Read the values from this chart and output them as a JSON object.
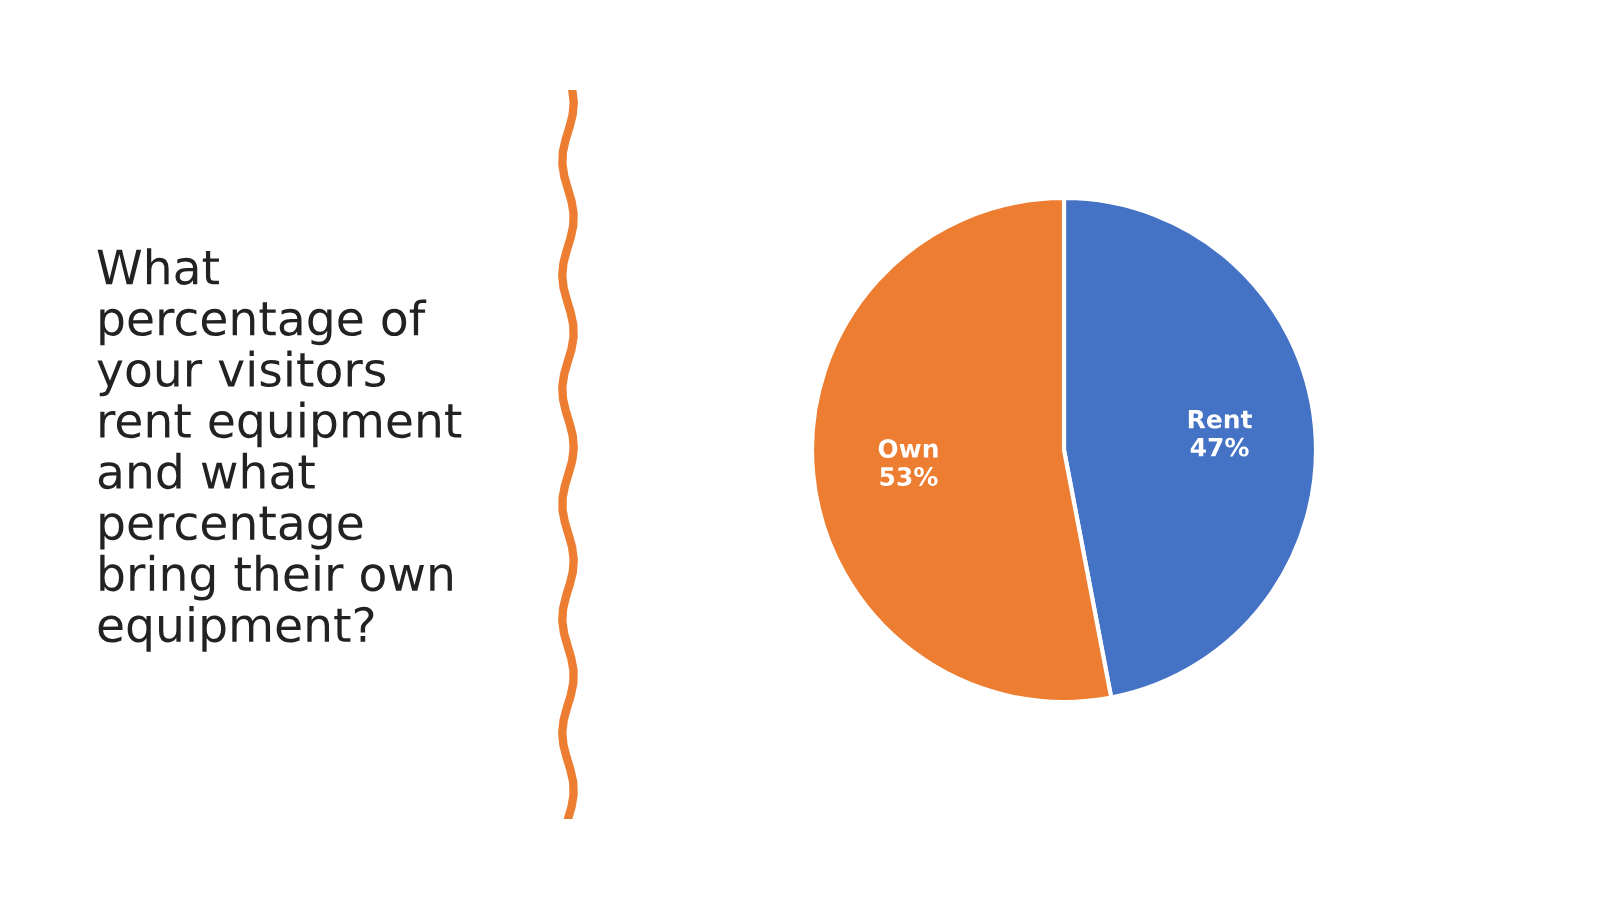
{
  "chart_data": {
    "type": "pie",
    "title": "What\npercentage of\nyour visitors\nrent equipment\nand what\npercentage\nbring their own\nequipment?",
    "categories": [
      "Rent",
      "Own"
    ],
    "values": [
      47,
      53
    ],
    "colors": [
      "#4472c4",
      "#ed7d31"
    ],
    "value_labels": [
      "47%",
      "53%"
    ],
    "legend": false
  }
}
